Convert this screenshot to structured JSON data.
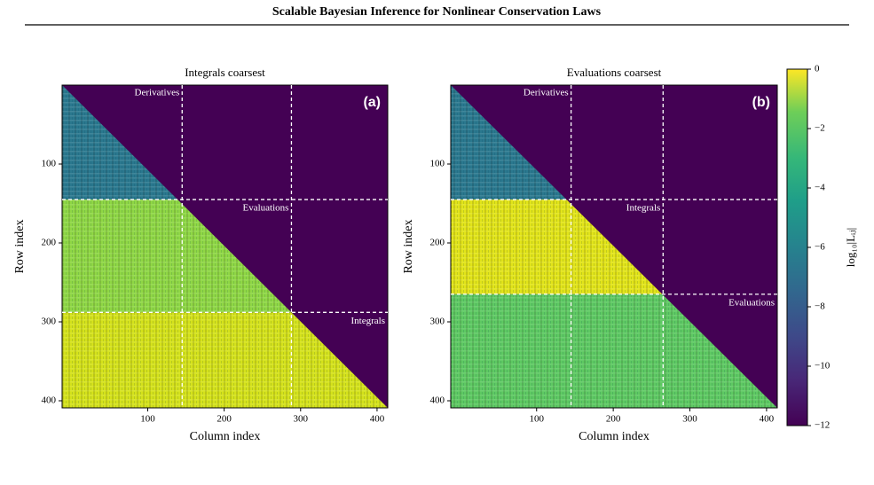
{
  "header": {
    "title": "Scalable Bayesian Inference for Nonlinear Conservation Laws"
  },
  "chart_data": [
    {
      "type": "heatmap",
      "title": "Integrals coarsest",
      "panel_label": "(a)",
      "xlabel": "Column index",
      "ylabel": "Row index",
      "xlim": [
        -12,
        414
      ],
      "ylim": [
        0,
        409
      ],
      "y_inverted": true,
      "xticks": [
        100,
        200,
        300,
        400
      ],
      "yticks": [
        100,
        200,
        300,
        400
      ],
      "blocks": [
        "Derivatives",
        "Evaluations",
        "Integrals"
      ],
      "block_edges": [
        145,
        288
      ],
      "block_colors": [
        "#2a788e",
        "#8fd744",
        "#d5e21a"
      ],
      "background": "#440154"
    },
    {
      "type": "heatmap",
      "title": "Evaluations coarsest",
      "panel_label": "(b)",
      "xlabel": "Column index",
      "ylabel": "Row index",
      "xlim": [
        -12,
        414
      ],
      "ylim": [
        0,
        409
      ],
      "y_inverted": true,
      "xticks": [
        100,
        200,
        300,
        400
      ],
      "yticks": [
        100,
        200,
        300,
        400
      ],
      "blocks": [
        "Derivatives",
        "Integrals",
        "Evaluations"
      ],
      "block_edges": [
        145,
        265
      ],
      "block_colors": [
        "#2a788e",
        "#e2e418",
        "#5ec962"
      ],
      "background": "#440154"
    }
  ],
  "colorbar": {
    "label": "log₁₀|Lᵢⱼ|",
    "lim": [
      -12,
      0
    ],
    "ticks": [
      0,
      {
        "value": -2,
        "label": "−2"
      },
      {
        "value": -4,
        "label": "−4"
      },
      {
        "value": -6,
        "label": "−6"
      },
      {
        "value": -8,
        "label": "−8"
      },
      {
        "value": -10,
        "label": "−10"
      },
      {
        "value": -12,
        "label": "−12"
      }
    ]
  }
}
